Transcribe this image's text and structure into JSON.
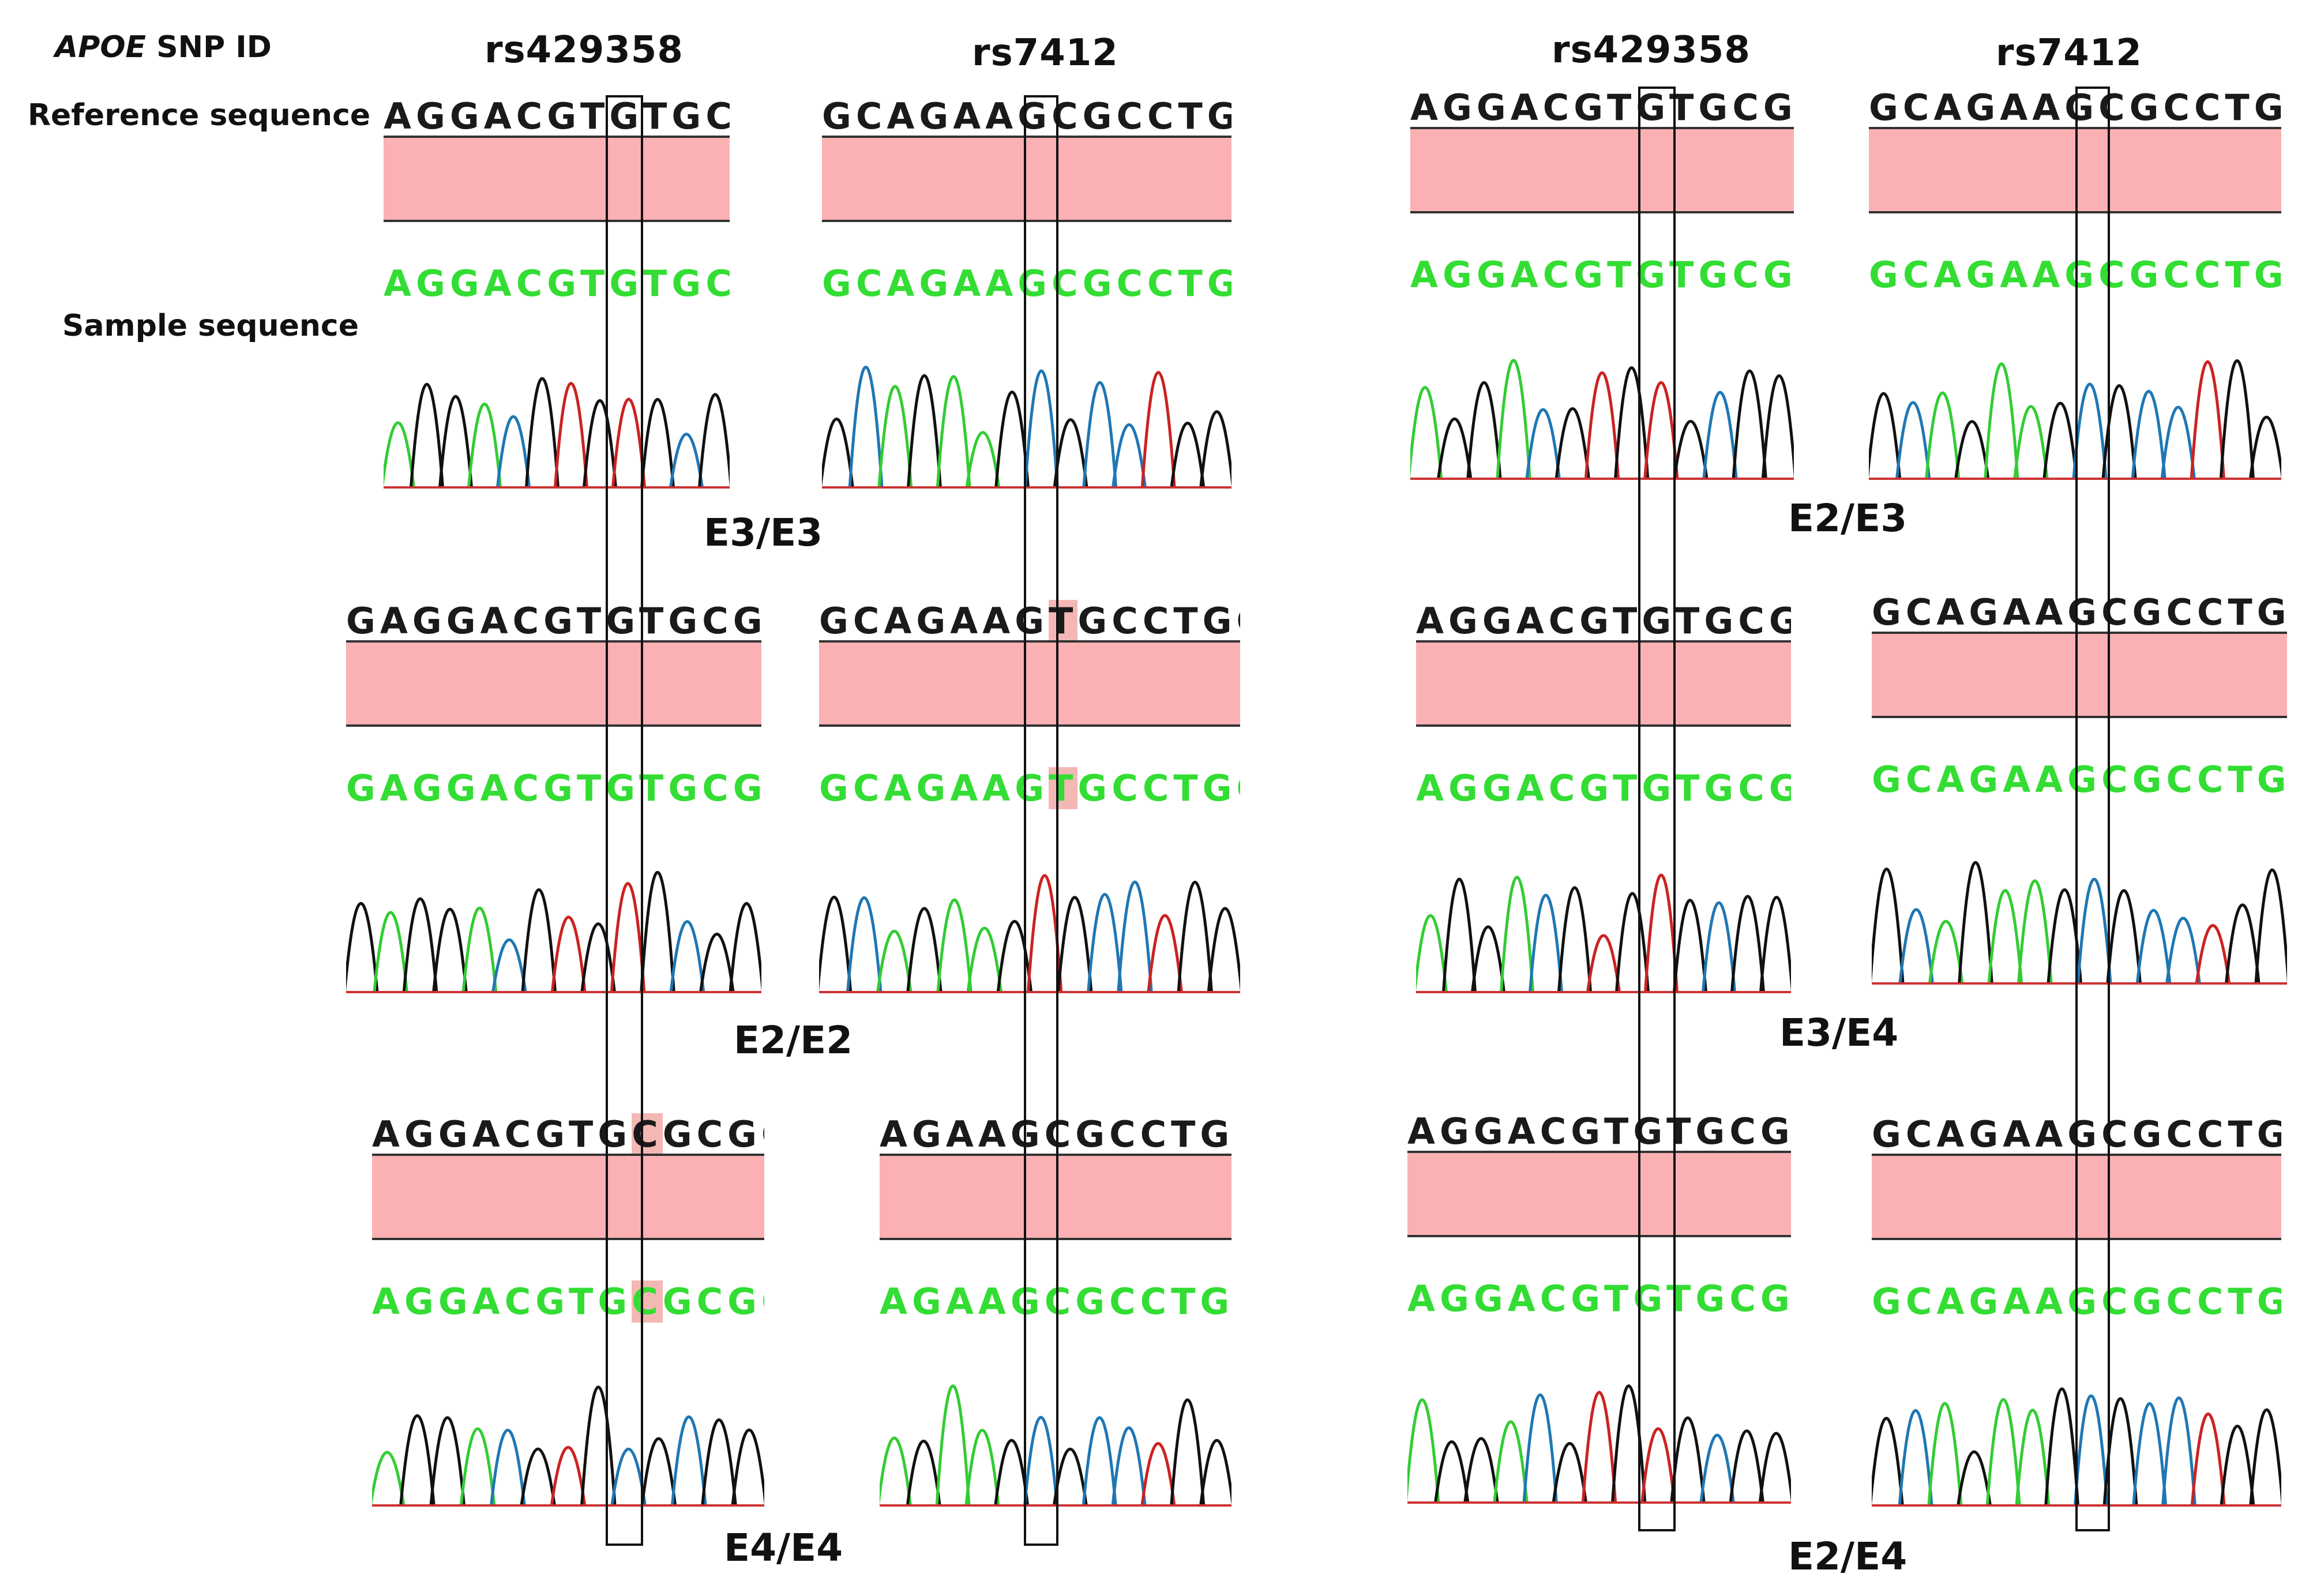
{
  "header": {
    "gene_label": "APOE",
    "snp_id_label": "SNP ID",
    "reference_label": "Reference sequence",
    "sample_label": "Sample sequence",
    "snp_left_1": "rs429358",
    "snp_left_2": "rs7412",
    "snp_right_1": "rs429358",
    "snp_right_2": "rs7412"
  },
  "panels": [
    {
      "ref": "AGGACGTGTGCG",
      "sample": "AGGACGTGTGCG",
      "highlight": false
    },
    {
      "ref": "GCAGAAGCGCCTGG",
      "sample": "GCAGAAGCGCCTGG",
      "highlight": false
    },
    {
      "ref": "AGGACGTGTGCGG",
      "sample": "AGGACGTGTGCGG",
      "highlight": false
    },
    {
      "ref": "GCAGAAGCGCCTGG",
      "sample": "GCAGAAGCGCCTGG",
      "highlight": false
    },
    {
      "ref": "GAGGACGTGTGCGG",
      "sample": "GAGGACGTGTGCGG",
      "highlight": false
    },
    {
      "ref_pre": "GCAGAAG",
      "ref_hl": "T",
      "ref_post": "GCCTGG",
      "sample_pre": "GCAGAAG",
      "sample_hl": "T",
      "sample_post": "GCCTGG",
      "highlight": true
    },
    {
      "ref": "AGGACGTGTGCGG",
      "sample": "AGGACGTGTGCGG",
      "highlight": false
    },
    {
      "ref": "GCAGAAGCGCCTGG",
      "sample": "GCAGAAGCGCCTGG",
      "highlight": false
    },
    {
      "ref_pre": "AGGACGTG",
      "ref_hl": "C",
      "ref_post": "GCGG",
      "sample_pre": "AGGACGTG",
      "sample_hl": "C",
      "sample_post": "GCGG",
      "highlight": true
    },
    {
      "ref": "AGAAGCGCCTGG",
      "sample": "AGAAGCGCCTGG",
      "highlight": false
    },
    {
      "ref": "AGGACGTGTGCGG",
      "sample": "AGGACGTGTGCGG",
      "highlight": false
    },
    {
      "ref": "GCAGAAGCGCCTGG",
      "sample": "GCAGAAGCGCCTGG",
      "highlight": false
    }
  ],
  "genotypes": {
    "left_row1": "E3/E3",
    "left_row2": "E2/E2",
    "left_row3": "E4/E4",
    "right_row1": "E2/E3",
    "right_row2": "E3/E4",
    "right_row3": "E2/E4"
  },
  "colors": {
    "ref_text": "#1a1a1a",
    "sample_text": "#33dd33",
    "alignment_bar": "#fbb1b4",
    "variant_highlight": "#f4b8b4",
    "trace_A": "#33cc33",
    "trace_C": "#1f77b4",
    "trace_G": "#111111",
    "trace_T": "#cc2222"
  }
}
